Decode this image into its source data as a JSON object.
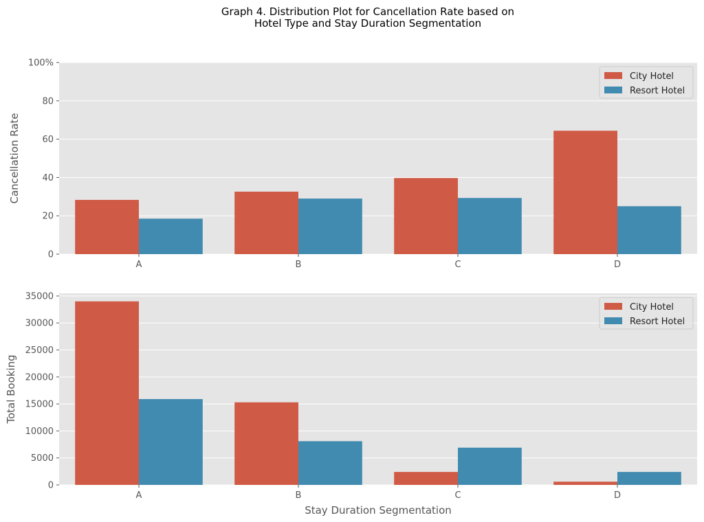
{
  "figure": {
    "title_lines": [
      "Graph 4. Distribution Plot for Cancellation Rate based on",
      "Hotel Type and Stay Duration Segmentation"
    ]
  },
  "colors": {
    "city": "#cf5a45",
    "resort": "#418ab0",
    "panel_bg": "#e5e5e5",
    "grid": "#ffffff"
  },
  "chart_data": [
    {
      "type": "bar",
      "categories": [
        "A",
        "B",
        "C",
        "D"
      ],
      "series": [
        {
          "name": "City Hotel",
          "values": [
            28.3,
            32.6,
            39.7,
            64.4
          ]
        },
        {
          "name": "Resort Hotel",
          "values": [
            18.5,
            29.0,
            29.3,
            25.0
          ]
        }
      ],
      "xlabel": "",
      "ylabel": "Cancellation Rate",
      "ylim": [
        0,
        100
      ],
      "yticks": [
        "0",
        "20",
        "40",
        "60",
        "80",
        "100%"
      ],
      "grid": true,
      "legend": "top-right"
    },
    {
      "type": "bar",
      "categories": [
        "A",
        "B",
        "C",
        "D"
      ],
      "series": [
        {
          "name": "City Hotel",
          "values": [
            34000,
            15300,
            2400,
            600
          ]
        },
        {
          "name": "Resort Hotel",
          "values": [
            15900,
            8100,
            6900,
            2400
          ]
        }
      ],
      "xlabel": "Stay Duration Segmentation",
      "ylabel": "Total Booking",
      "ylim": [
        0,
        35500
      ],
      "yticks": [
        "0",
        "5000",
        "10000",
        "15000",
        "20000",
        "25000",
        "30000",
        "35000"
      ],
      "grid": true,
      "legend": "top-right"
    }
  ]
}
